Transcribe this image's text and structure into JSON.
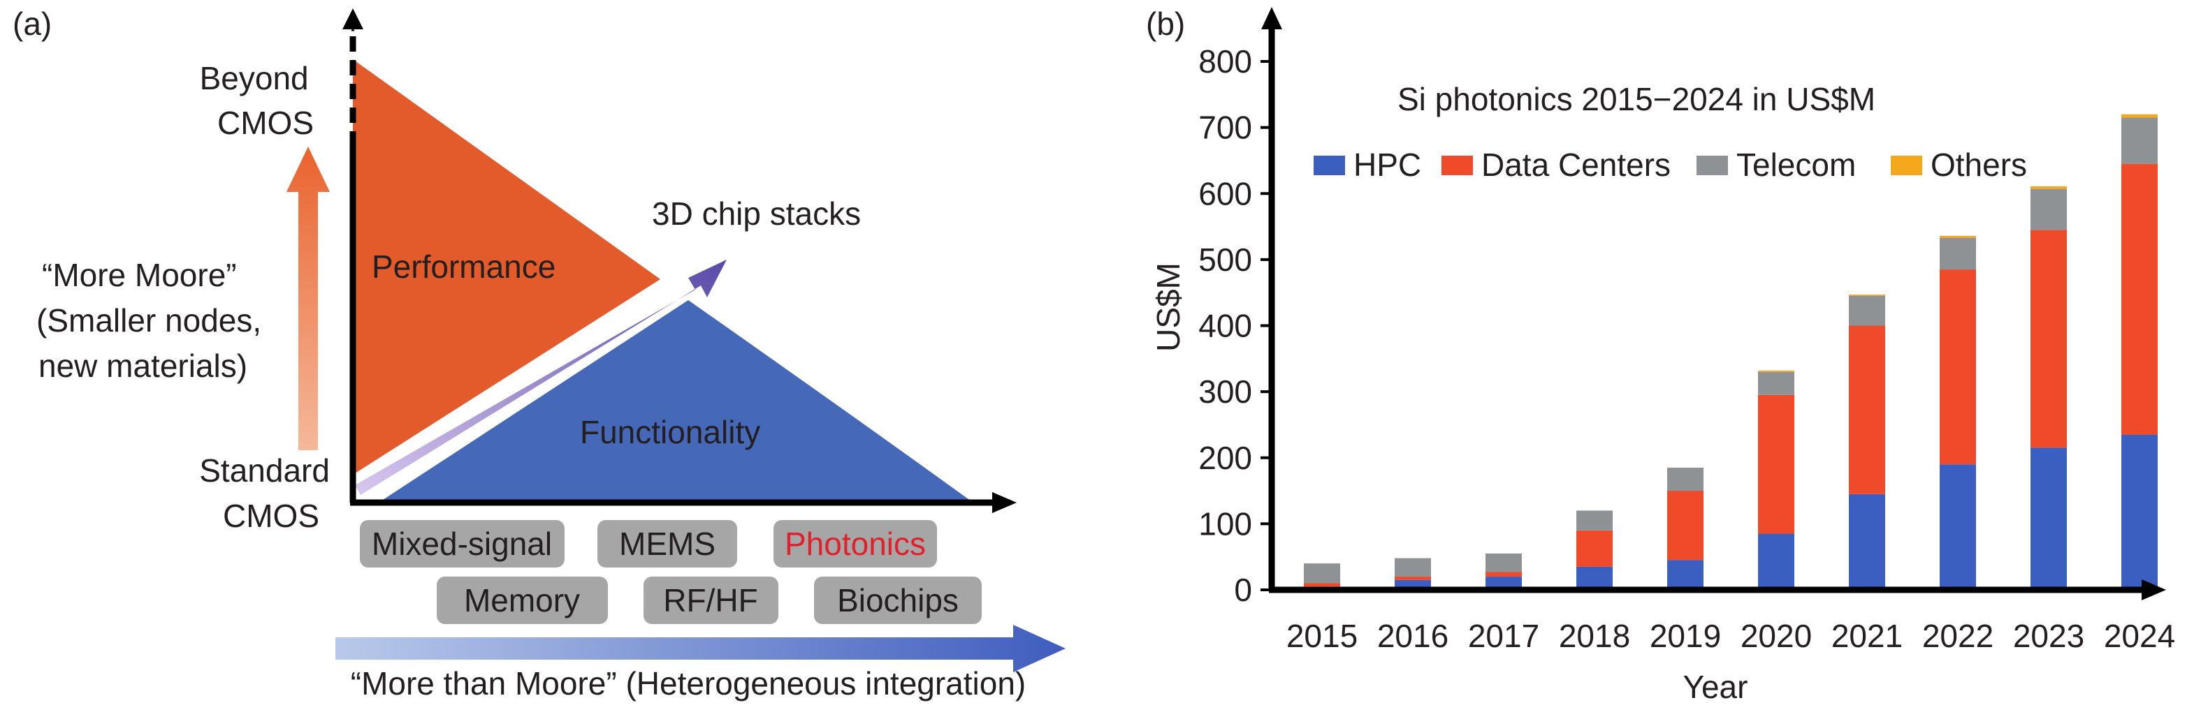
{
  "colors": {
    "performance": "#e35a2b",
    "functionality": "#4568b8",
    "stack_arrow": "#5a4aa8",
    "more_moore_arrow": "#e9632e",
    "more_than_moore_arrow": "#3f5dbe",
    "chip_box": "#a6a6a6",
    "photonics_text": "#e0202b",
    "hpc": "#3b5fc0",
    "data_centers": "#ef4a2a",
    "telecom": "#8e9294",
    "others": "#f6a81c"
  },
  "panel_a": {
    "label": "(a)",
    "y_top": [
      "Beyond",
      "CMOS"
    ],
    "y_bottom": [
      "Standard",
      "CMOS"
    ],
    "more_moore": [
      "“More Moore”",
      "(Smaller nodes,",
      "new materials)"
    ],
    "performance": "Performance",
    "functionality": "Functionality",
    "chip_stacks": "3D chip stacks",
    "boxes": [
      {
        "text": "Mixed-signal",
        "icon": "chip-box"
      },
      {
        "text": "MEMS",
        "icon": "chip-box"
      },
      {
        "text": "Photonics",
        "icon": "chip-box",
        "highlight": true
      },
      {
        "text": "Memory",
        "icon": "chip-box"
      },
      {
        "text": "RF/HF",
        "icon": "chip-box"
      },
      {
        "text": "Biochips",
        "icon": "chip-box"
      }
    ],
    "more_than_moore": "“More than Moore” (Heterogeneous integration)"
  },
  "panel_b": {
    "label": "(b)"
  },
  "chart_data": {
    "type": "bar",
    "stacked": true,
    "title": "Si photonics 2015−2024 in US$M",
    "xlabel": "Year",
    "ylabel": "US$M",
    "ylim": [
      0,
      800
    ],
    "yticks": [
      0,
      100,
      200,
      300,
      400,
      500,
      600,
      700,
      800
    ],
    "grid": false,
    "legend": "top, horizontal",
    "categories": [
      "2015",
      "2016",
      "2017",
      "2018",
      "2019",
      "2020",
      "2021",
      "2022",
      "2023",
      "2024"
    ],
    "series": [
      {
        "name": "HPC",
        "color": "#3b5fc0",
        "values": [
          5,
          15,
          20,
          35,
          45,
          85,
          145,
          190,
          215,
          235
        ]
      },
      {
        "name": "Data Centers",
        "color": "#ef4a2a",
        "values": [
          5,
          5,
          7,
          55,
          105,
          210,
          255,
          295,
          330,
          410
        ]
      },
      {
        "name": "Telecom",
        "color": "#8e9294",
        "values": [
          30,
          28,
          28,
          30,
          35,
          35,
          45,
          48,
          62,
          70
        ]
      },
      {
        "name": "Others",
        "color": "#f6a81c",
        "values": [
          0,
          0,
          0,
          0,
          0,
          2,
          2,
          3,
          4,
          5
        ]
      }
    ]
  }
}
